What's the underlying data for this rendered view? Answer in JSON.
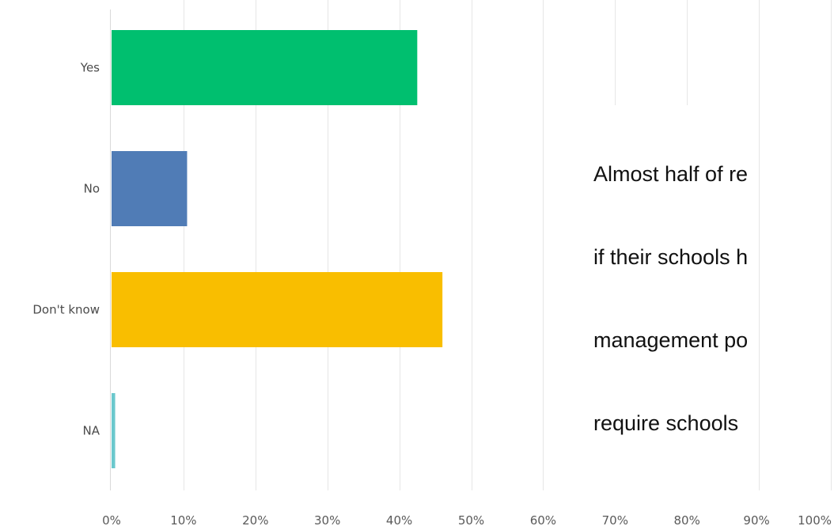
{
  "chart_data": {
    "type": "bar",
    "orientation": "horizontal",
    "categories": [
      "Yes",
      "No",
      "Don't know",
      "NA"
    ],
    "values": [
      42.5,
      10.5,
      46,
      0.5
    ],
    "unit": "%",
    "xlim": [
      0,
      100
    ],
    "x_ticks": [
      "0%",
      "10%",
      "20%",
      "30%",
      "40%",
      "50%",
      "60%",
      "70%",
      "80%",
      "90%",
      "100%"
    ],
    "colors": [
      "#00BF6F",
      "#507CB6",
      "#F9BE00",
      "#6BC8CD"
    ],
    "grid": true,
    "legend": "none",
    "title": "",
    "xlabel": "",
    "ylabel": ""
  },
  "annotation": {
    "lines": [
      "Almost half of re",
      "if their schools h",
      "management po",
      "require schools "
    ]
  }
}
